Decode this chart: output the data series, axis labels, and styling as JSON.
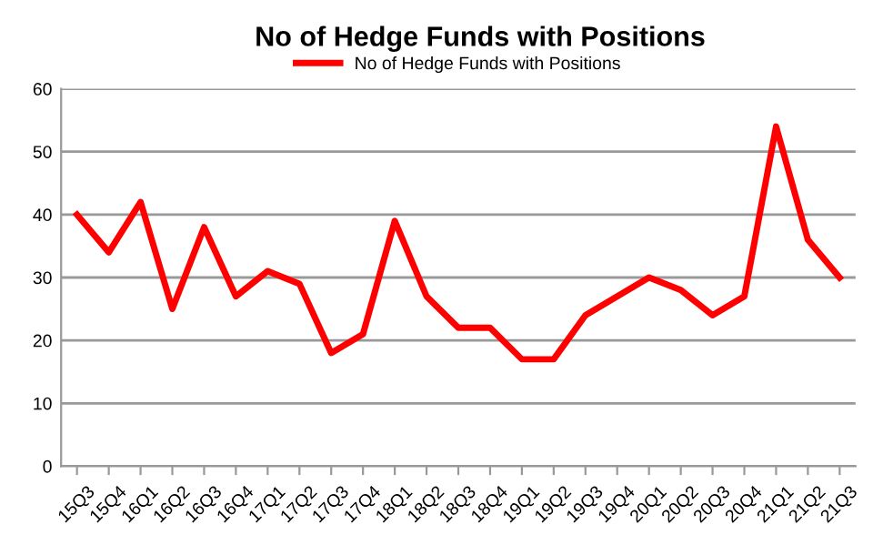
{
  "chart_data": {
    "type": "line",
    "title": "No of Hedge Funds with Positions",
    "categories": [
      "15Q3",
      "15Q4",
      "16Q1",
      "16Q2",
      "16Q3",
      "16Q4",
      "17Q1",
      "17Q2",
      "17Q3",
      "17Q4",
      "18Q1",
      "18Q2",
      "18Q3",
      "18Q4",
      "19Q1",
      "19Q2",
      "19Q3",
      "19Q4",
      "20Q1",
      "20Q2",
      "20Q3",
      "20Q4",
      "21Q1",
      "21Q2",
      "21Q3"
    ],
    "series": [
      {
        "name": "No of Hedge Funds with Positions",
        "color": "#ff0000",
        "values": [
          40,
          34,
          42,
          25,
          38,
          27,
          31,
          29,
          18,
          21,
          39,
          27,
          22,
          22,
          17,
          17,
          24,
          27,
          30,
          28,
          24,
          27,
          54,
          36,
          30
        ]
      }
    ],
    "ylim": [
      0,
      60
    ],
    "yticks": [
      0,
      10,
      20,
      30,
      40,
      50,
      60
    ],
    "grid": "y",
    "legend": "top",
    "marker": "none",
    "line_style": "solid"
  }
}
